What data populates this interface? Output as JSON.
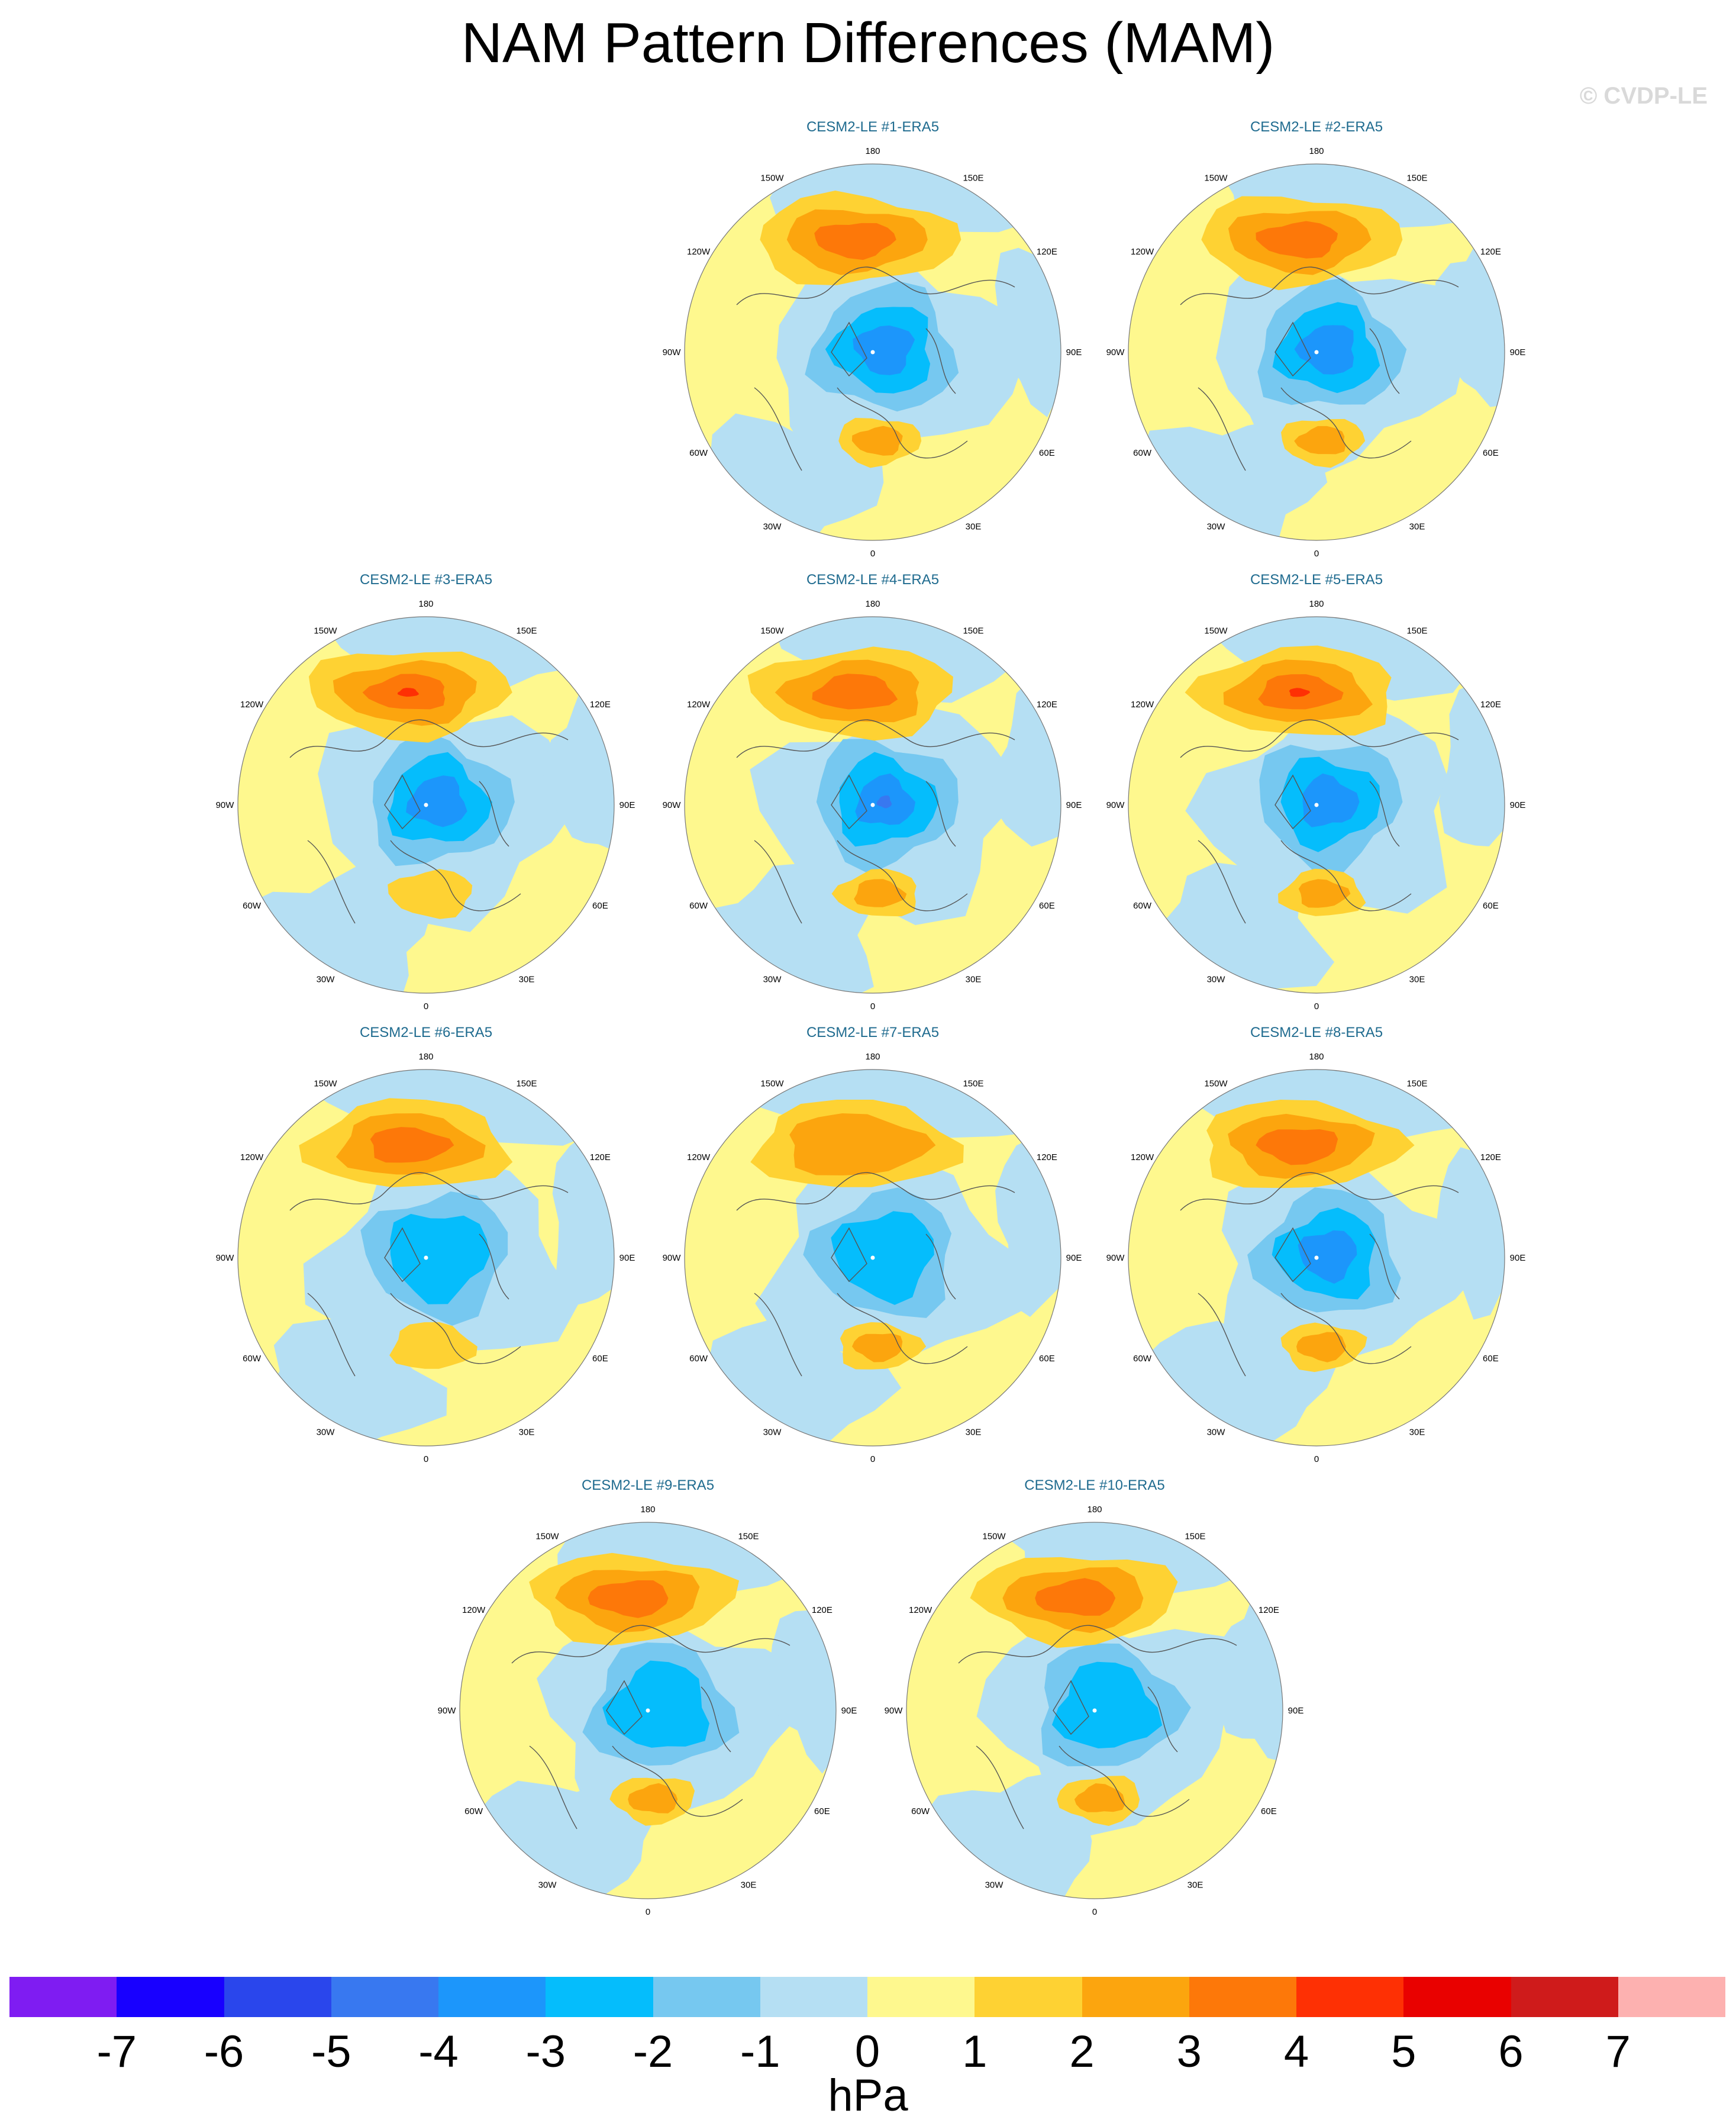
{
  "title": "NAM Pattern Differences (MAM)",
  "watermark": "© CVDP-LE",
  "units": "hPa",
  "longitude_labels": [
    "180",
    "150E",
    "120E",
    "90E",
    "60E",
    "30E",
    "0",
    "30W",
    "60W",
    "90W",
    "120W",
    "150W"
  ],
  "colors": {
    "neg7": "#7f1cf2",
    "neg6": "#1800ff",
    "neg5": "#2a46ec",
    "neg4": "#3878f0",
    "neg3": "#1c96fb",
    "neg2": "#05bdfc",
    "neg1": "#76c8f0",
    "neg0": "#b5dff3",
    "pos0": "#fef88e",
    "pos1": "#fed233",
    "pos2": "#fca50e",
    "pos3": "#fd7809",
    "pos4": "#fe3004",
    "pos5": "#e90100",
    "pos6": "#cf1b1b",
    "pos7": "#fdb1b0",
    "panel_title": "#1f6b8f",
    "coastline": "#555555"
  },
  "colorbar": {
    "colors": [
      "#7f1cf2",
      "#1800ff",
      "#2a46ec",
      "#3878f0",
      "#1c96fb",
      "#05bdfc",
      "#76c8f0",
      "#b5dff3",
      "#fef88e",
      "#fed233",
      "#fca50e",
      "#fd7809",
      "#fe3004",
      "#e90100",
      "#cf1b1b",
      "#fdb1b0"
    ],
    "levels": [
      "-7",
      "-6",
      "-5",
      "-4",
      "-3",
      "-2",
      "-1",
      "0",
      "1",
      "2",
      "3",
      "4",
      "5",
      "6",
      "7"
    ]
  },
  "panels": [
    {
      "title": "CESM2-LE #1-ERA5",
      "pacific_high": 3,
      "polar_low": -3,
      "atlantic_high": 2
    },
    {
      "title": "CESM2-LE #2-ERA5",
      "pacific_high": 3,
      "polar_low": -3,
      "atlantic_high": 2
    },
    {
      "title": "CESM2-LE #3-ERA5",
      "pacific_high": 4,
      "polar_low": -3,
      "atlantic_high": 1
    },
    {
      "title": "CESM2-LE #4-ERA5",
      "pacific_high": 3,
      "polar_low": -4,
      "atlantic_high": 2
    },
    {
      "title": "CESM2-LE #5-ERA5",
      "pacific_high": 4,
      "polar_low": -3,
      "atlantic_high": 2
    },
    {
      "title": "CESM2-LE #6-ERA5",
      "pacific_high": 3,
      "polar_low": -2,
      "atlantic_high": 1
    },
    {
      "title": "CESM2-LE #7-ERA5",
      "pacific_high": 2,
      "polar_low": -2,
      "atlantic_high": 2
    },
    {
      "title": "CESM2-LE #8-ERA5",
      "pacific_high": 3,
      "polar_low": -3,
      "atlantic_high": 2
    },
    {
      "title": "CESM2-LE #9-ERA5",
      "pacific_high": 3,
      "polar_low": -2,
      "atlantic_high": 2
    },
    {
      "title": "CESM2-LE #10-ERA5",
      "pacific_high": 3,
      "polar_low": -2,
      "atlantic_high": 2
    }
  ]
}
